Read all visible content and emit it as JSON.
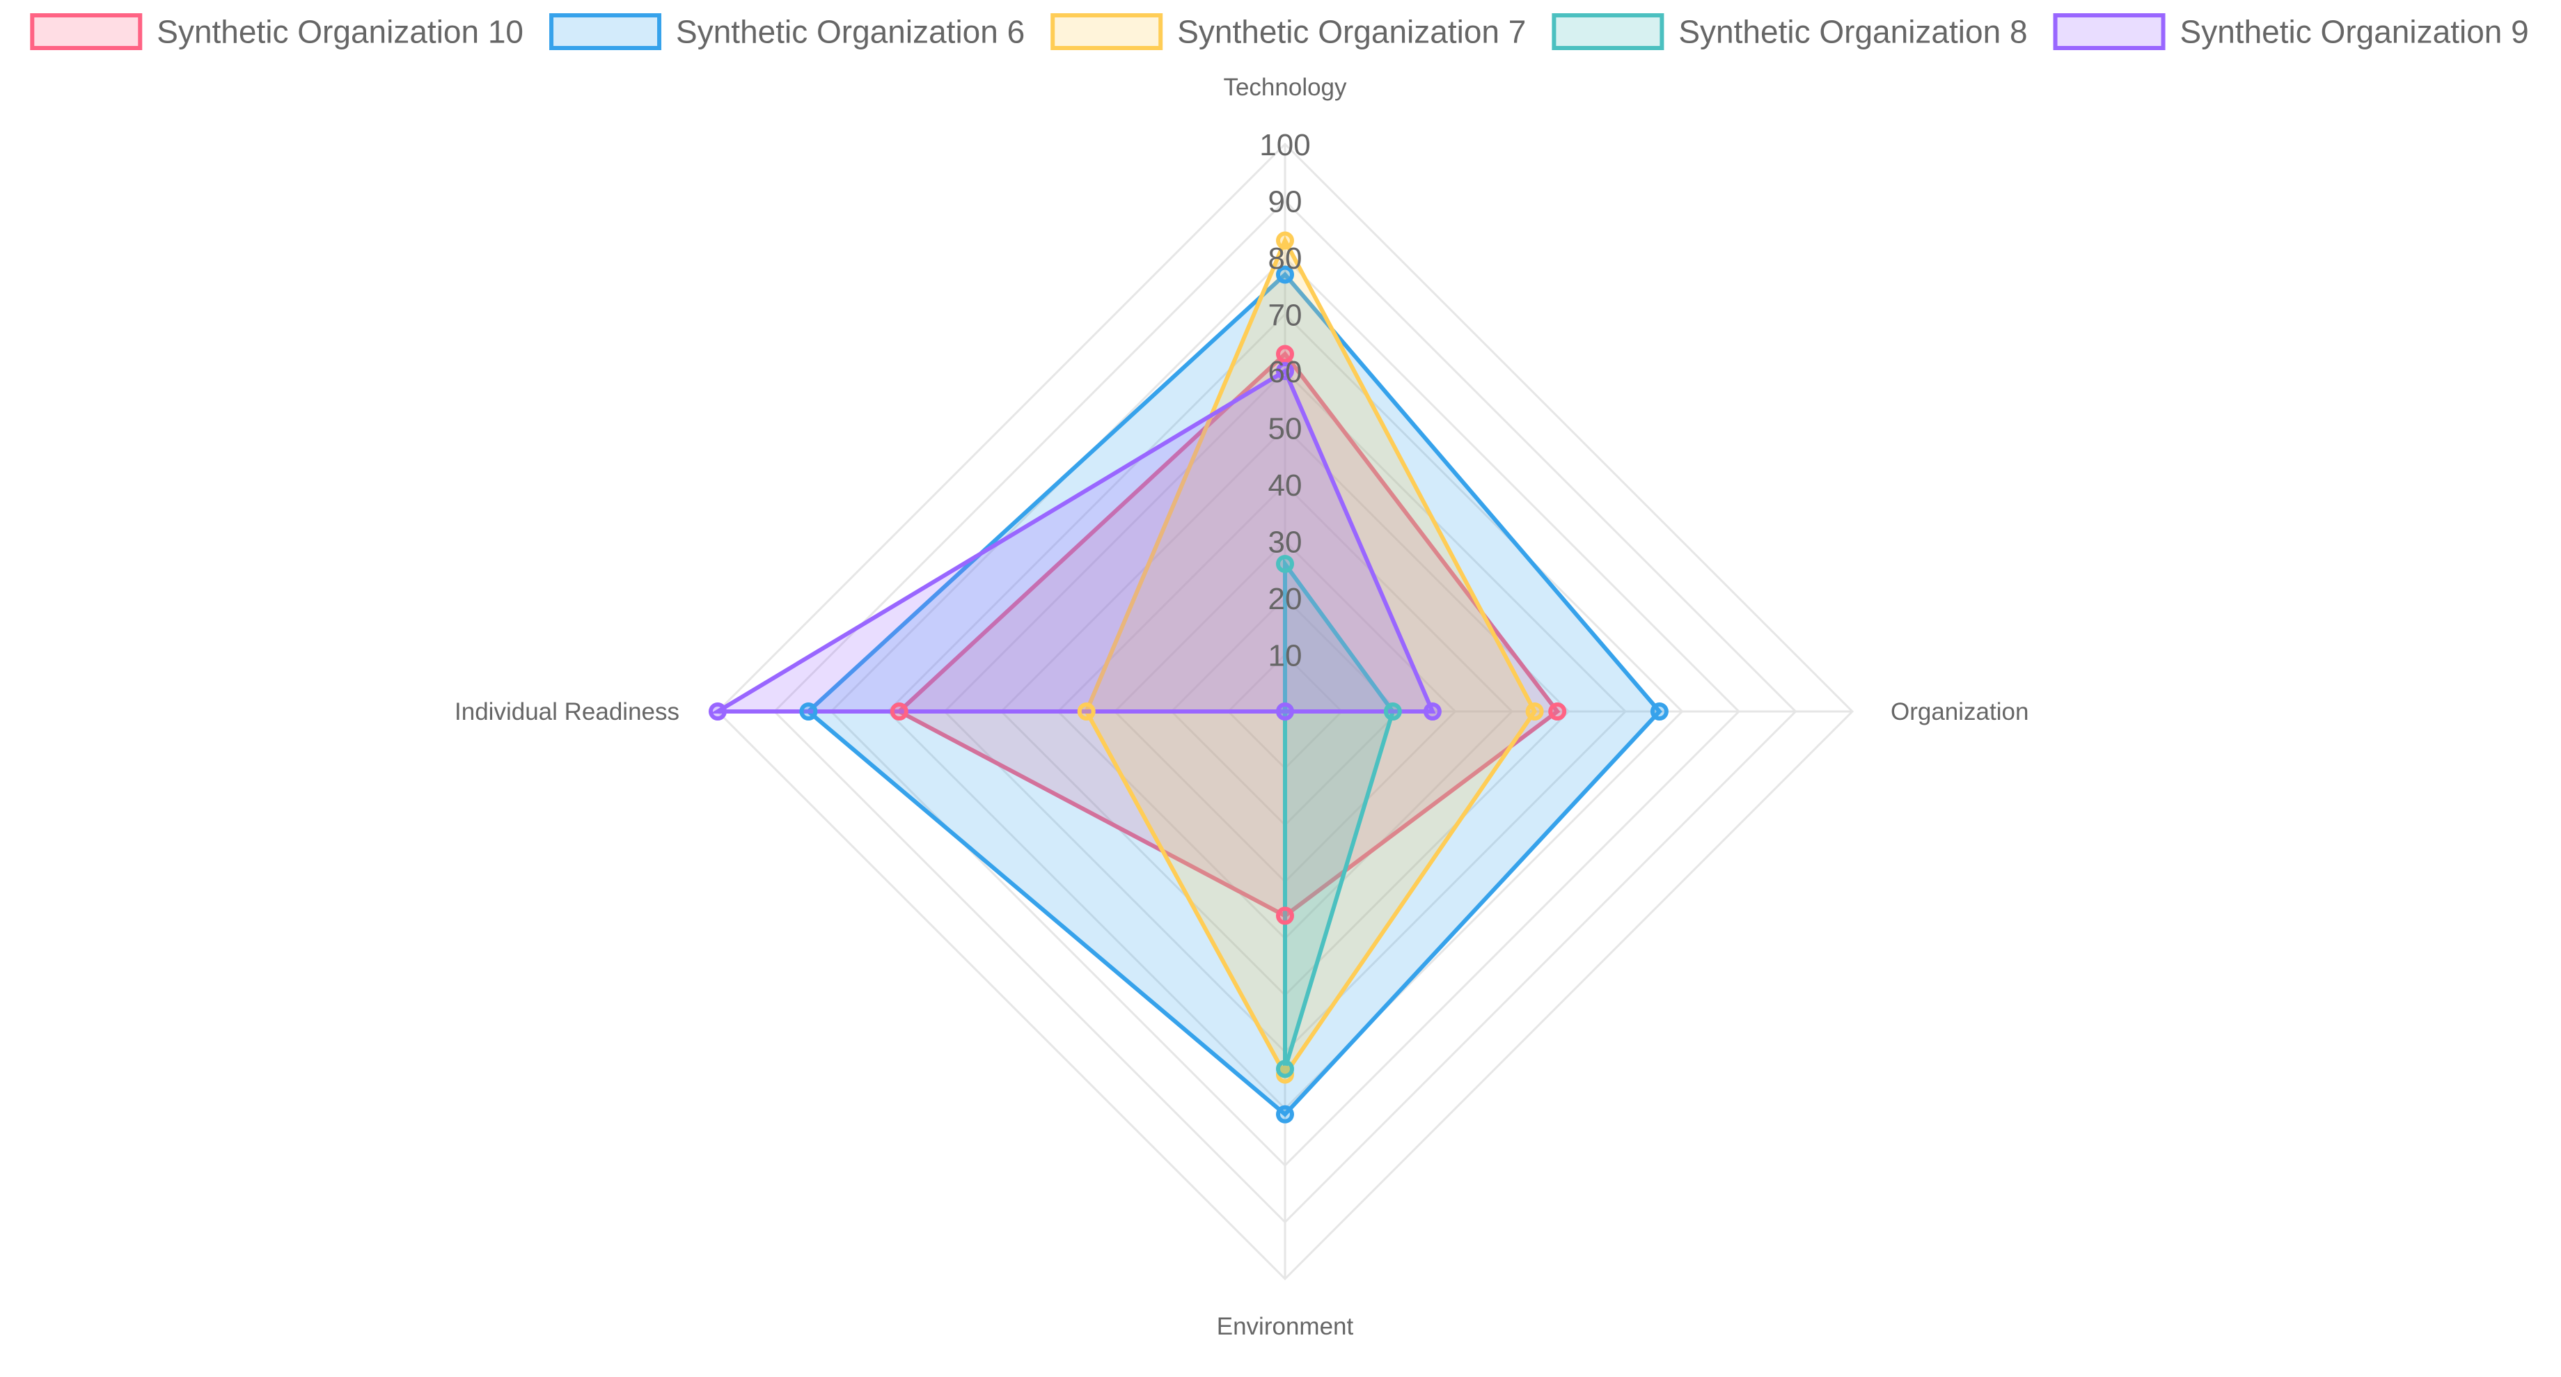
{
  "chart_data": {
    "type": "radar",
    "axes": [
      "Technology",
      "Organization",
      "Environment",
      "Individual Readiness"
    ],
    "r_ticks": [
      10,
      20,
      30,
      40,
      50,
      60,
      70,
      80,
      90,
      100
    ],
    "rlim": [
      0,
      100
    ],
    "grid": true,
    "legend_position": "top",
    "series": [
      {
        "name": "Synthetic Organization 10",
        "values": [
          63,
          48,
          36,
          68
        ],
        "color": "#ff6384"
      },
      {
        "name": "Synthetic Organization 6",
        "values": [
          77,
          66,
          71,
          84
        ],
        "color": "#36a2eb"
      },
      {
        "name": "Synthetic Organization 7",
        "values": [
          83,
          44,
          64,
          35
        ],
        "color": "#ffcd56"
      },
      {
        "name": "Synthetic Organization 8",
        "values": [
          26,
          19,
          63,
          0
        ],
        "color": "#4bc0c0"
      },
      {
        "name": "Synthetic Organization 9",
        "values": [
          60,
          26,
          0,
          100
        ],
        "color": "#9966ff"
      }
    ]
  }
}
